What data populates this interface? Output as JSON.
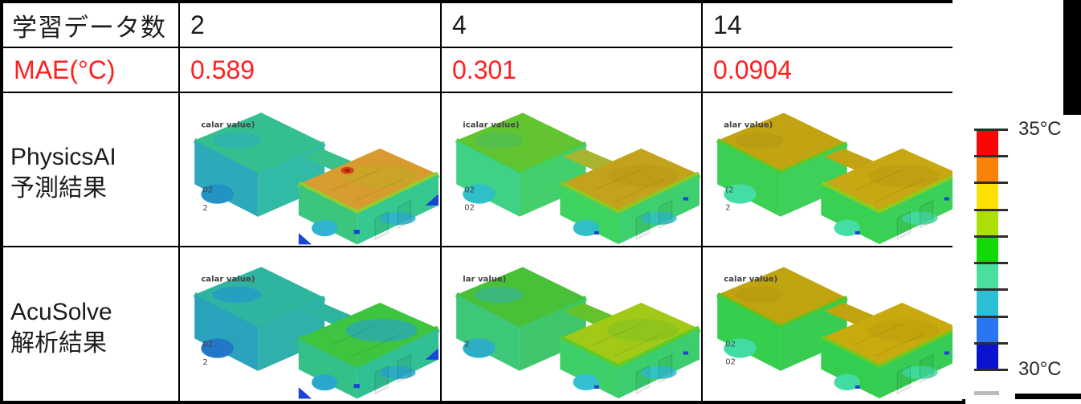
{
  "table": {
    "header_row": {
      "label": "学習データ数",
      "values": [
        "2",
        "4",
        "14"
      ]
    },
    "mae_row": {
      "label": "MAE(°C)",
      "values": [
        "0.589",
        "0.301",
        "0.0904"
      ],
      "color": "#ff1f1f"
    },
    "row_headers": [
      {
        "line1": "PhysicsAI",
        "line2": "予測結果"
      },
      {
        "line1": "AcuSolve",
        "line2": "解析結果"
      }
    ]
  },
  "result_cells": [
    {
      "id": "physicsai-2",
      "row": "PhysicsAI 予測結果",
      "training_count": "2",
      "overlay": {
        "scalar_label": "calar value)",
        "axis_num1": "02",
        "axis_num2": "2"
      },
      "scene": {
        "left_top": "#35bf8f",
        "left_top_accent": "#2fb3ab",
        "left_band": "#35bf8f",
        "left_front": "#2da9b9",
        "left_front_r": "#31bba6",
        "left_blob": "#2293c5",
        "bridge_top": "#39c08b",
        "bridge_side": "#2aa49e",
        "right_top": "#d89b2f",
        "right_top_accent": "#c9a426",
        "right_band": "#93cc2e",
        "right_front": "#3cc57d",
        "right_front_r": "#35c98f",
        "right_blob": "#2fb3d0",
        "hotspot": "#cf4419",
        "blue": "#1b43d6",
        "blue_size": "large"
      }
    },
    {
      "id": "physicsai-4",
      "row": "PhysicsAI 予測結果",
      "training_count": "4",
      "overlay": {
        "scalar_label": "icalar value)",
        "axis_num1": "02",
        "axis_num2": "02"
      },
      "scene": {
        "left_top": "#62c431",
        "left_top_accent": "#52bf4a",
        "left_band": "#54c839",
        "left_front": "#3fd186",
        "left_front_r": "#43cf6b",
        "left_blob": "#2fbfc6",
        "bridge_top": "#a9b530",
        "bridge_side": "#43b84d",
        "right_top": "#c4a31c",
        "right_top_accent": "#bd9d18",
        "right_band": "#8cc923",
        "right_front": "#3ed35f",
        "right_front_r": "#3ecf6e",
        "right_blob": "#2fbfc6",
        "hotspot": null,
        "blue": "#1b43d6",
        "blue_size": "small"
      }
    },
    {
      "id": "physicsai-14",
      "row": "PhysicsAI 予測結果",
      "training_count": "14",
      "overlay": {
        "scalar_label": "alar value)",
        "axis_num1": "(2",
        "axis_num2": "2"
      },
      "scene": {
        "left_top": "#c2a413",
        "left_top_accent": "#b89c12",
        "left_band": "#68c521",
        "left_front": "#3bd053",
        "left_front_r": "#3ed058",
        "left_blob": "#45dda6",
        "bridge_top": "#c2a413",
        "bridge_side": "#58c32c",
        "right_top": "#c7a813",
        "right_top_accent": "#bfa011",
        "right_band": "#8ecb1e",
        "right_front": "#39d153",
        "right_front_r": "#3bd058",
        "right_blob": "#45dda6",
        "hotspot": null,
        "blue": "#1b43d6",
        "blue_size": "small"
      }
    },
    {
      "id": "acusolve-2",
      "row": "AcuSolve 解析結果",
      "training_count": "2",
      "overlay": {
        "scalar_label": "calar value)",
        "axis_num1": "02",
        "axis_num2": "2"
      },
      "scene": {
        "left_top": "#2fb4a0",
        "left_top_accent": "#279fc0",
        "left_band": "#2fb4a0",
        "left_front": "#2aa2bb",
        "left_front_r": "#2fb0ab",
        "left_blob": "#2377c9",
        "bridge_top": "#2fb4a0",
        "bridge_side": "#27969e",
        "right_top": "#3ec43e",
        "right_top_accent": "#2fae9b",
        "right_band": "#3ec43e",
        "right_front": "#33c188",
        "right_front_r": "#31bf95",
        "right_blob": "#2aa8cc",
        "hotspot": null,
        "blue": "#1b43d6",
        "blue_size": "large"
      }
    },
    {
      "id": "acusolve-4",
      "row": "AcuSolve 解析結果",
      "training_count": "4",
      "overlay": {
        "scalar_label": "lar value)",
        "axis_num1": "2",
        "axis_num2": ""
      },
      "scene": {
        "left_top": "#48c038",
        "left_top_accent": "#3bb87a",
        "left_band": "#48c038",
        "left_front": "#3cc878",
        "left_front_r": "#3fc66a",
        "left_blob": "#2cafc6",
        "bridge_top": "#64c32c",
        "bridge_side": "#3cb34e",
        "right_top": "#a2c818",
        "right_top_accent": "#8fc41c",
        "right_band": "#5ecb26",
        "right_front": "#3ecf68",
        "right_front_r": "#3bcd6e",
        "right_blob": "#33c0d2",
        "hotspot": null,
        "blue": "#1b43d6",
        "blue_size": "small"
      }
    },
    {
      "id": "acusolve-14",
      "row": "AcuSolve 解析結果",
      "training_count": "14",
      "overlay": {
        "scalar_label": "calar value)",
        "axis_num1": "02",
        "axis_num2": "02"
      },
      "scene": {
        "left_top": "#c0a40f",
        "left_top_accent": "#b89d0e",
        "left_band": "#60c31d",
        "left_front": "#35ce4d",
        "left_front_r": "#38cc52",
        "left_blob": "#41dca2",
        "bridge_top": "#c0a40f",
        "bridge_side": "#52c12a",
        "right_top": "#c9aa0e",
        "right_top_accent": "#c1a30d",
        "right_band": "#74c81a",
        "right_front": "#33ce4f",
        "right_front_r": "#36cc55",
        "right_blob": "#41dca2",
        "hotspot": null,
        "blue": "#1b43d6",
        "blue_size": "small"
      }
    }
  ],
  "legend": {
    "max_label": "35°C",
    "min_label": "30°C",
    "colors": [
      "#f90606",
      "#f98306",
      "#ffdf06",
      "#abdf06",
      "#13d806",
      "#4adf9d",
      "#2bbfd4",
      "#2a76f2",
      "#0b14cc"
    ],
    "tick_color": "#2e2e2e"
  },
  "colors": {
    "mae_red": "#ff1f1f",
    "border_black": "#000000",
    "background": "#ffffff"
  }
}
